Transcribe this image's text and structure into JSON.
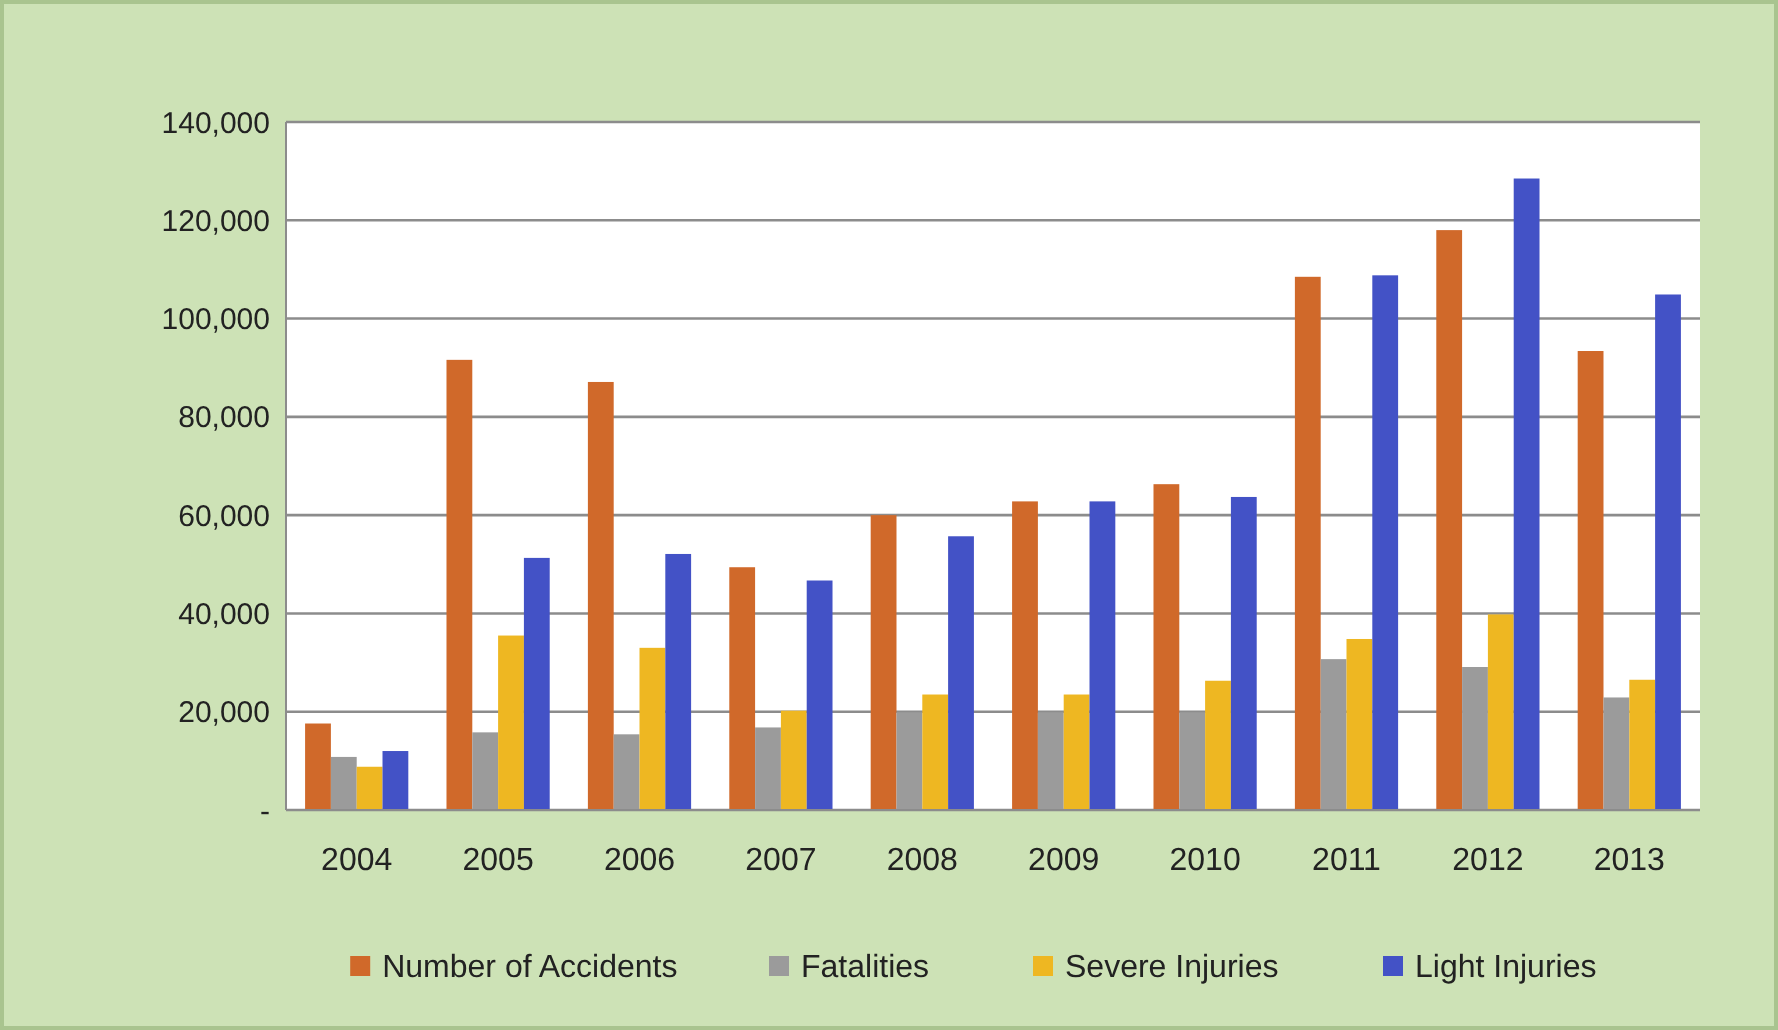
{
  "chart_data": {
    "type": "bar",
    "categories": [
      "2004",
      "2005",
      "2006",
      "2007",
      "2008",
      "2009",
      "2010",
      "2011",
      "2012",
      "2013"
    ],
    "series": [
      {
        "name": "Number of Accidents",
        "color": "#d0692a",
        "values": [
          17600,
          91600,
          87100,
          49400,
          60000,
          62800,
          66300,
          108500,
          118000,
          93400
        ]
      },
      {
        "name": "Fatalities",
        "color": "#9b9b9b",
        "values": [
          10800,
          15800,
          15400,
          16800,
          19900,
          19900,
          19900,
          30700,
          29100,
          22900
        ]
      },
      {
        "name": "Severe Injuries",
        "color": "#eeb722",
        "values": [
          8800,
          35500,
          33000,
          20200,
          23500,
          23500,
          26300,
          34800,
          39800,
          26500
        ]
      },
      {
        "name": "Light Injuries",
        "color": "#4352c6",
        "values": [
          12000,
          51300,
          52100,
          46700,
          55700,
          62800,
          63700,
          108800,
          128500,
          104900
        ]
      }
    ],
    "ylim": [
      0,
      140000
    ],
    "yticks": [
      {
        "value": 0,
        "label": "-"
      },
      {
        "value": 20000,
        "label": "20,000"
      },
      {
        "value": 40000,
        "label": "40,000"
      },
      {
        "value": 60000,
        "label": "60,000"
      },
      {
        "value": 80000,
        "label": "80,000"
      },
      {
        "value": 100000,
        "label": "100,000"
      },
      {
        "value": 120000,
        "label": "120,000"
      },
      {
        "value": 140000,
        "label": "140,000"
      }
    ],
    "grid": "y",
    "legend": "bottom"
  }
}
